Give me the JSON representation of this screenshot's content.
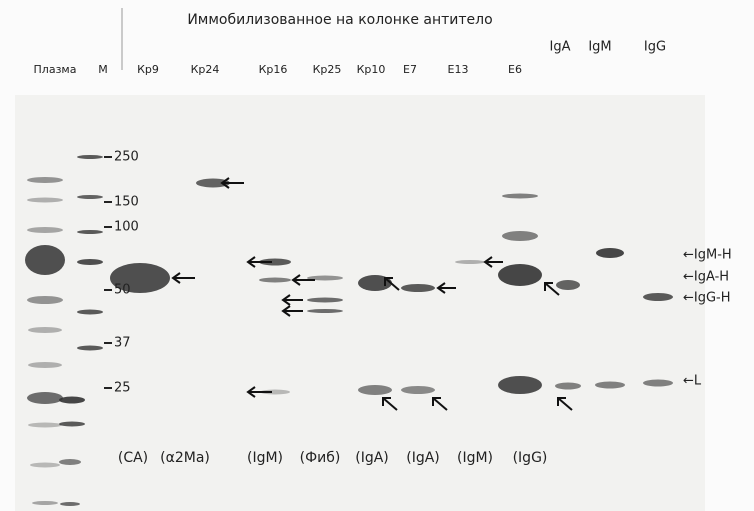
{
  "header": {
    "title": "Иммобилизованное на колонке антитело"
  },
  "lanes": [
    "Плазма",
    "M",
    "Кр9",
    "Кр24",
    "Кр16",
    "Кр25",
    "Кр10",
    "E7",
    "E13",
    "E6",
    "IgA",
    "IgM",
    "IgG"
  ],
  "markers": [
    250,
    150,
    100,
    50,
    37,
    25
  ],
  "specificities": [
    "(CA)",
    "(α2Ma)",
    "(IgM)",
    "(Фиб)",
    "(IgA)",
    "(IgA)",
    "(IgM)",
    "(IgG)"
  ],
  "chain_labels": [
    "←IgM-H",
    "←IgA-H",
    "←IgG-H",
    "←L"
  ]
}
